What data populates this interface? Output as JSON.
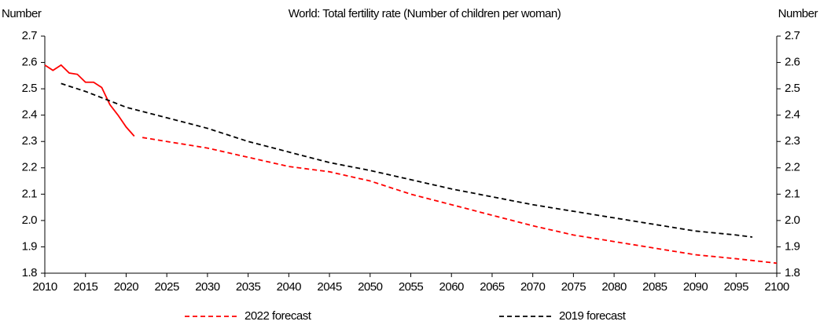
{
  "chart_data": {
    "type": "line",
    "title": "World: Total fertility rate (Number of children per woman)",
    "y_label": "Number",
    "y2_label": "Number",
    "xlim": [
      2010,
      2100
    ],
    "xticks": [
      2010,
      2015,
      2020,
      2025,
      2030,
      2035,
      2040,
      2045,
      2050,
      2055,
      2060,
      2065,
      2070,
      2075,
      2080,
      2085,
      2090,
      2095,
      2100
    ],
    "ylim": [
      1.8,
      2.7
    ],
    "yticks": [
      1.8,
      1.9,
      {
        "value": 2,
        "label": "2.0"
      },
      2.1,
      2.2,
      2.3,
      2.4,
      2.5,
      2.6,
      2.7
    ],
    "y2lim": [
      1.8,
      2.7
    ],
    "y2ticks": [
      1.8,
      1.9,
      {
        "value": 2,
        "label": "2.0"
      },
      2.1,
      2.2,
      2.3,
      2.4,
      2.5,
      2.6,
      2.7
    ],
    "series": [
      {
        "name": "2022 forecast",
        "color": "#ff0000",
        "dash": "dashed",
        "solid_through": 2021,
        "x": [
          2010,
          2011,
          2012,
          2013,
          2014,
          2015,
          2016,
          2017,
          2018,
          2019,
          2020,
          2021,
          2022,
          2025,
          2030,
          2035,
          2040,
          2045,
          2050,
          2055,
          2060,
          2065,
          2070,
          2075,
          2080,
          2085,
          2090,
          2095,
          2100
        ],
        "values": [
          2.59,
          2.57,
          2.59,
          2.56,
          2.555,
          2.525,
          2.525,
          2.505,
          2.44,
          2.4,
          2.355,
          2.32,
          2.315,
          2.3,
          2.275,
          2.24,
          2.205,
          2.185,
          2.15,
          2.1,
          2.06,
          2.02,
          1.98,
          1.945,
          1.92,
          1.895,
          1.87,
          1.855,
          1.838
        ]
      },
      {
        "name": "2019 forecast",
        "color": "#000000",
        "dash": "dashed",
        "x": [
          2012,
          2015,
          2020,
          2025,
          2030,
          2035,
          2040,
          2045,
          2050,
          2055,
          2060,
          2065,
          2070,
          2075,
          2080,
          2085,
          2090,
          2095,
          2097
        ],
        "values": [
          2.52,
          2.49,
          2.43,
          2.39,
          2.35,
          2.3,
          2.26,
          2.22,
          2.19,
          2.155,
          2.12,
          2.09,
          2.06,
          2.035,
          2.01,
          1.985,
          1.96,
          1.945,
          1.937
        ]
      }
    ]
  }
}
